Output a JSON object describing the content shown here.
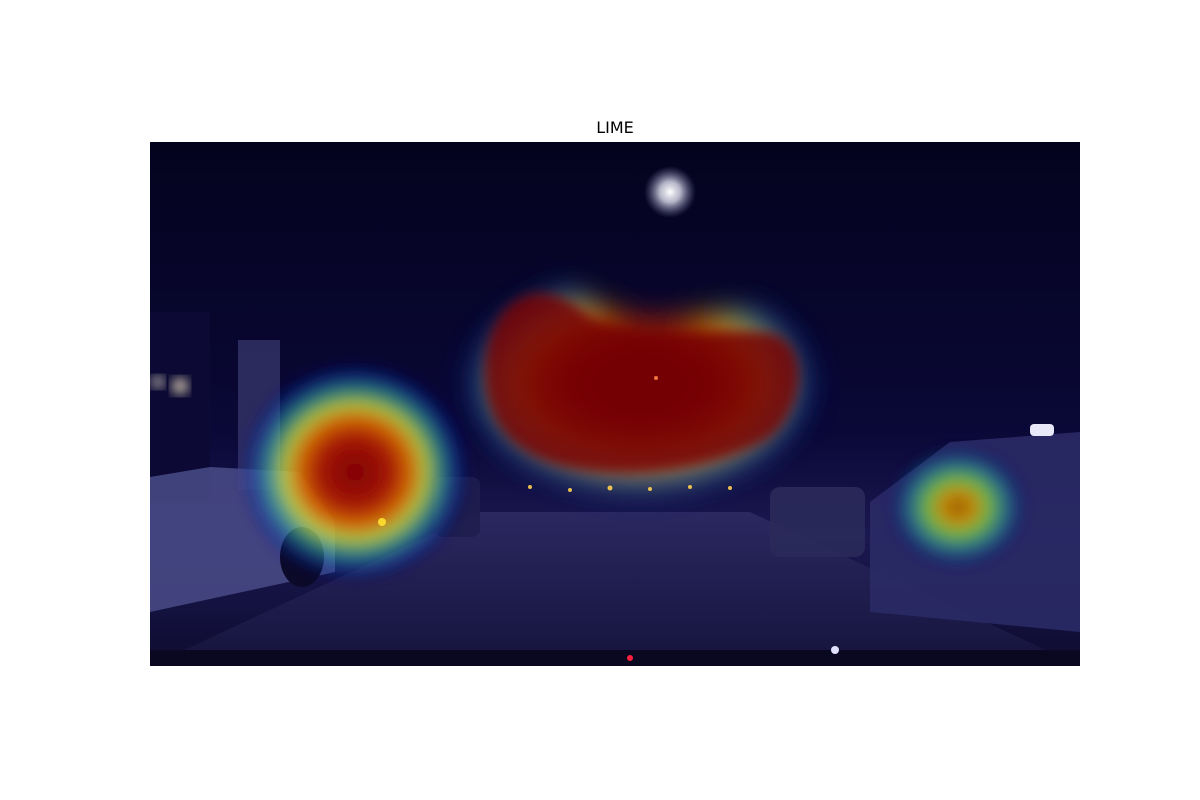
{
  "figure": {
    "title": "LIME"
  },
  "overlay": {
    "colormap": "jet",
    "description_colors": {
      "low": "#00007f",
      "mid": "#3fff6a",
      "high": "#7f0000"
    }
  }
}
